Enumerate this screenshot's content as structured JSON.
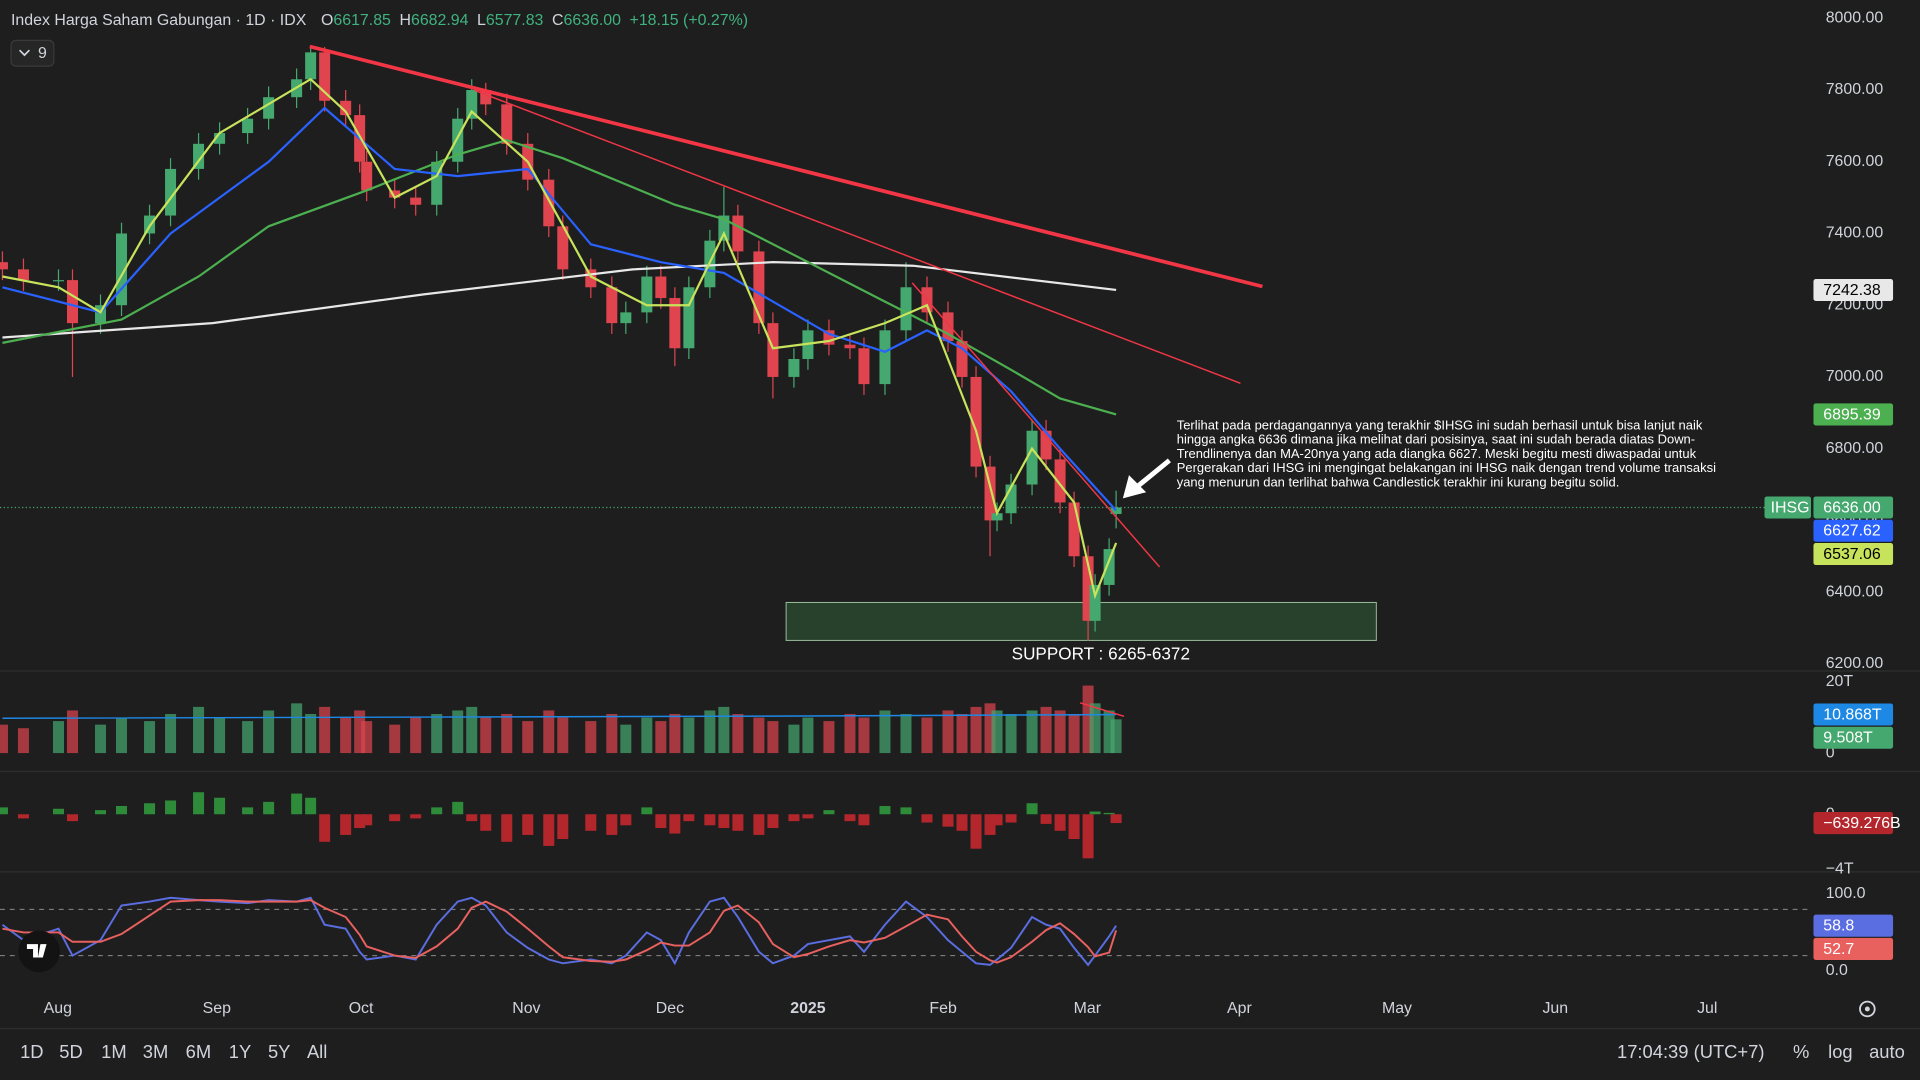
{
  "chart_data": {
    "type": "candlestick",
    "title": "Index Harga Saham Gabungan · 1D · IDX",
    "indicator_count": 9,
    "ohlc_keys": [
      "O",
      "H",
      "L",
      "C"
    ],
    "last_labels": [
      "6617.85",
      "6682.94",
      "6577.83",
      "6636.00"
    ],
    "change_label": "+18.15 (+0.27%)",
    "name": "IHSG",
    "up_color": "#45a86f",
    "down_color": "#e0444f",
    "x": [
      0,
      3,
      8,
      10,
      14,
      17,
      21,
      24,
      28,
      31,
      35,
      38,
      42,
      44,
      46,
      49,
      51,
      52,
      56,
      59,
      62,
      65,
      67,
      69,
      72,
      75,
      78,
      80,
      84,
      87,
      89,
      92,
      94,
      96,
      98,
      101,
      103,
      105,
      108,
      110,
      113,
      115,
      118,
      121,
      123,
      126,
      129,
      132,
      135,
      137,
      139,
      141,
      142,
      144,
      147,
      149,
      151,
      153,
      155,
      156,
      158,
      159
    ],
    "open": [
      7320,
      7300,
      7270,
      7270,
      7150,
      7200,
      7400,
      7450,
      7580,
      7650,
      7680,
      7720,
      7780,
      7830,
      7905,
      7770,
      7730,
      7600,
      7520,
      7500,
      7480,
      7600,
      7720,
      7800,
      7760,
      7650,
      7550,
      7420,
      7300,
      7250,
      7150,
      7180,
      7280,
      7220,
      7080,
      7250,
      7380,
      7450,
      7350,
      7150,
      7000,
      7050,
      7130,
      7090,
      7080,
      6980,
      7130,
      7250,
      7180,
      7100,
      7000,
      6750,
      6600,
      6620,
      6700,
      6850,
      6770,
      6650,
      6500,
      6320,
      6420,
      6617.85
    ],
    "high": [
      7350,
      7330,
      7300,
      7300,
      7230,
      7430,
      7480,
      7610,
      7680,
      7710,
      7750,
      7810,
      7860,
      7920,
      7920,
      7800,
      7760,
      7630,
      7550,
      7530,
      7630,
      7750,
      7830,
      7820,
      7790,
      7680,
      7580,
      7450,
      7330,
      7280,
      7210,
      7310,
      7310,
      7250,
      7280,
      7410,
      7530,
      7480,
      7380,
      7180,
      7080,
      7160,
      7160,
      7120,
      7110,
      7160,
      7320,
      7280,
      7210,
      7130,
      7030,
      6780,
      6650,
      6730,
      6880,
      6880,
      6800,
      6680,
      6530,
      6450,
      6550,
      6682.94
    ],
    "low": [
      7270,
      7240,
      7240,
      7000,
      7120,
      7170,
      7370,
      7420,
      7550,
      7620,
      7650,
      7690,
      7750,
      7800,
      7740,
      7700,
      7570,
      7490,
      7470,
      7450,
      7450,
      7570,
      7690,
      7730,
      7620,
      7520,
      7390,
      7270,
      7220,
      7120,
      7120,
      7150,
      7190,
      7030,
      7050,
      7220,
      7350,
      7320,
      7120,
      6940,
      6970,
      7020,
      7060,
      7050,
      6950,
      6950,
      7100,
      7150,
      7070,
      6970,
      6720,
      6500,
      6570,
      6590,
      6670,
      6740,
      6620,
      6470,
      6265,
      6290,
      6390,
      6577.83
    ],
    "close": [
      7300,
      7270,
      7270,
      7150,
      7200,
      7400,
      7450,
      7580,
      7650,
      7680,
      7720,
      7780,
      7830,
      7905,
      7770,
      7730,
      7600,
      7520,
      7500,
      7480,
      7600,
      7720,
      7800,
      7760,
      7650,
      7550,
      7420,
      7300,
      7250,
      7150,
      7180,
      7280,
      7220,
      7080,
      7250,
      7380,
      7450,
      7350,
      7150,
      7000,
      7050,
      7130,
      7090,
      7080,
      6980,
      7130,
      7250,
      7180,
      7100,
      7000,
      6750,
      6600,
      6620,
      6700,
      6850,
      6770,
      6650,
      6500,
      6320,
      6420,
      6520,
      6636
    ],
    "xlim": [
      -0.35,
      258.04
    ],
    "xticks": [
      {
        "value": 7.9,
        "label": "Aug"
      },
      {
        "value": 30.6,
        "label": "Sep"
      },
      {
        "value": 51.2,
        "label": "Oct"
      },
      {
        "value": 74.8,
        "label": "Nov"
      },
      {
        "value": 95.3,
        "label": "Dec"
      },
      {
        "value": 115.0,
        "label": "2025"
      },
      {
        "value": 134.3,
        "label": "Feb"
      },
      {
        "value": 154.9,
        "label": "Mar"
      },
      {
        "value": 176.6,
        "label": "Apr"
      },
      {
        "value": 199.1,
        "label": "May"
      },
      {
        "value": 221.7,
        "label": "Jun"
      },
      {
        "value": 243.4,
        "label": "Jul"
      }
    ],
    "ylim": [
      6180,
      8051
    ],
    "yticks": [
      {
        "value": 6200,
        "label": "6200.00"
      },
      {
        "value": 6400,
        "label": "6400.00"
      },
      {
        "value": 6600,
        "label": "6600.00"
      },
      {
        "value": 6800,
        "label": "6800.00"
      },
      {
        "value": 7000,
        "label": "7000.00"
      },
      {
        "value": 7200,
        "label": "7200.00"
      },
      {
        "value": 7400,
        "label": "7400.00"
      },
      {
        "value": 7600,
        "label": "7600.00"
      },
      {
        "value": 7800,
        "label": "7800.00"
      },
      {
        "value": 8000,
        "label": "8000.00"
      }
    ],
    "moving_averages": [
      {
        "color": "#e8e8e8",
        "x": [
          0,
          30,
          60,
          90,
          110,
          130,
          159
        ],
        "values": [
          7110,
          7150,
          7230,
          7300,
          7320,
          7310,
          7242.38
        ]
      },
      {
        "color": "#4caf50",
        "x": [
          0,
          17,
          28,
          38,
          52,
          65,
          72,
          80,
          96,
          103,
          113,
          126,
          135,
          144,
          151,
          159
        ],
        "values": [
          7095,
          7160,
          7280,
          7420,
          7520,
          7620,
          7660,
          7610,
          7480,
          7440,
          7340,
          7210,
          7120,
          7020,
          6940,
          6895.39
        ]
      },
      {
        "color": "#2962ff",
        "x": [
          0,
          14,
          24,
          38,
          46,
          56,
          65,
          75,
          84,
          94,
          103,
          110,
          118,
          126,
          132,
          137,
          144,
          151,
          159
        ],
        "values": [
          7250,
          7180,
          7400,
          7600,
          7750,
          7580,
          7560,
          7580,
          7370,
          7320,
          7290,
          7210,
          7120,
          7070,
          7130,
          7080,
          6960,
          6800,
          6627.62
        ]
      },
      {
        "color": "#c7e35b",
        "x": [
          0,
          8,
          14,
          21,
          31,
          44,
          49,
          56,
          62,
          67,
          75,
          84,
          92,
          98,
          103,
          110,
          118,
          126,
          132,
          139,
          142,
          147,
          153,
          156,
          159
        ],
        "values": [
          7280,
          7250,
          7180,
          7420,
          7680,
          7830,
          7740,
          7500,
          7560,
          7740,
          7600,
          7280,
          7200,
          7200,
          7400,
          7080,
          7100,
          7150,
          7200,
          6850,
          6620,
          6800,
          6650,
          6390,
          6537.06
        ]
      }
    ],
    "annotation": [
      "Terlihat pada perdagangannya yang terakhir $IHSG ini sudah berhasil untuk bisa lanjut naik",
      "hingga angka 6636 dimana jika melihat dari posisinya, saat ini sudah berada diatas Down-",
      "Trendlinenya dan MA-20nya yang ada diangka 6627. Meski begitu mesti diwaspadai untuk",
      "Pergerakan dari IHSG ini mengingat belakangan ini IHSG naik dengan trend volume transaksi",
      "yang menurun dan terlihat bahwa Candlestick terakhir ini kurang begitu solid."
    ],
    "support_label": "SUPPORT : 6265-6372",
    "volume": {
      "values": [
        8,
        7,
        9,
        12,
        8,
        10,
        9,
        11,
        13,
        10,
        9,
        12,
        14,
        11,
        13,
        10,
        12,
        9,
        8,
        10,
        11,
        12,
        13,
        10,
        11,
        9,
        12,
        10,
        9,
        11,
        8,
        10,
        9,
        11,
        10,
        12,
        13,
        11,
        10,
        9,
        8,
        10,
        9,
        11,
        10,
        12,
        11,
        10,
        12,
        11,
        13,
        14,
        12,
        11,
        12,
        13,
        12,
        11,
        19,
        14,
        12,
        9.508
      ],
      "value_labels": [
        null,
        null,
        null,
        null,
        null,
        null,
        null,
        null,
        null,
        null,
        null,
        null,
        null,
        null,
        null,
        null,
        null,
        null,
        null,
        null,
        null,
        null,
        null,
        null,
        null,
        null,
        null,
        null,
        null,
        null,
        null,
        null,
        null,
        null,
        null,
        null,
        null,
        null,
        null,
        null,
        null,
        null,
        null,
        null,
        null,
        null,
        null,
        null,
        null,
        null,
        null,
        null,
        null,
        null,
        null,
        null,
        null,
        null,
        null,
        null,
        null,
        "9.508T"
      ],
      "ylim": [
        -5.17,
        23.1
      ],
      "yticks": [
        {
          "value": 20,
          "label": "20T"
        },
        0
      ],
      "ma": {
        "color": "#1e88e5",
        "x": [
          0,
          110,
          155,
          159
        ],
        "values": [
          9.8,
          10.4,
          10.8,
          10.868
        ],
        "value_labels": [
          null,
          null,
          null,
          "10.868T"
        ]
      }
    },
    "flow": {
      "values": [
        0.5,
        -0.3,
        0.4,
        -0.5,
        0.3,
        0.6,
        0.8,
        1.0,
        1.6,
        1.2,
        0.5,
        0.9,
        1.5,
        1.2,
        -2.0,
        -1.5,
        -1.0,
        -0.8,
        -0.5,
        -0.3,
        0.5,
        0.9,
        -0.5,
        -1.2,
        -2.0,
        -1.5,
        -2.3,
        -1.8,
        -1.2,
        -1.5,
        -0.8,
        0.5,
        -1.0,
        -1.4,
        -0.5,
        -0.8,
        -1.0,
        -1.2,
        -1.5,
        -1.0,
        -0.5,
        -0.3,
        0.3,
        -0.5,
        -0.8,
        0.6,
        0.5,
        -0.6,
        -0.9,
        -1.2,
        -2.5,
        -1.5,
        -0.8,
        -0.6,
        0.8,
        -0.7,
        -1.2,
        -1.8,
        -3.2,
        0.2,
        0.1,
        -0.639276
      ],
      "value_labels": [
        null,
        null,
        null,
        null,
        null,
        null,
        null,
        null,
        null,
        null,
        null,
        null,
        null,
        null,
        null,
        null,
        null,
        null,
        null,
        null,
        null,
        null,
        null,
        null,
        null,
        null,
        null,
        null,
        null,
        null,
        null,
        null,
        null,
        null,
        null,
        null,
        null,
        null,
        null,
        null,
        null,
        null,
        null,
        null,
        null,
        null,
        null,
        null,
        null,
        null,
        null,
        null,
        null,
        null,
        null,
        null,
        null,
        null,
        null,
        null,
        null,
        "−639.276B"
      ],
      "ylim": [
        -4.18,
        3.11
      ],
      "yticks": [
        0,
        {
          "value": -4,
          "label": "−4T"
        }
      ],
      "up_color": "#2e8b3a",
      "down_color": "#b3262c"
    },
    "stoch": {
      "ylim": [
        -23.8,
        128.6
      ],
      "yticks": [
        {
          "value": 100,
          "label": "100.0"
        },
        {
          "value": 0,
          "label": "0.0"
        }
      ],
      "bands": [
        20,
        80
      ],
      "k": {
        "color": "#5b6ee1",
        "values": [
          60,
          40,
          55,
          20,
          40,
          85,
          90,
          95,
          92,
          90,
          88,
          92,
          90,
          95,
          60,
          55,
          25,
          15,
          20,
          15,
          60,
          90,
          95,
          85,
          50,
          30,
          15,
          10,
          15,
          10,
          20,
          50,
          40,
          10,
          50,
          90,
          95,
          70,
          25,
          10,
          20,
          35,
          40,
          45,
          25,
          60,
          90,
          70,
          40,
          25,
          10,
          8,
          15,
          30,
          70,
          60,
          55,
          30,
          8,
          20,
          45,
          58.8
        ]
      },
      "d": {
        "color": "#e8615f",
        "values": [
          55,
          50,
          50,
          38,
          38,
          48,
          72,
          90,
          92,
          92,
          90,
          90,
          90,
          92,
          82,
          70,
          47,
          32,
          20,
          17,
          32,
          55,
          82,
          90,
          77,
          55,
          32,
          18,
          13,
          12,
          15,
          27,
          37,
          33,
          33,
          50,
          78,
          85,
          63,
          35,
          18,
          22,
          32,
          40,
          37,
          43,
          58,
          73,
          67,
          45,
          25,
          14,
          11,
          18,
          38,
          53,
          62,
          48,
          31,
          19,
          24,
          52.7
        ]
      }
    }
  },
  "toolbar": {
    "ranges": [
      "1D",
      "5D",
      "1M",
      "3M",
      "6M",
      "1Y",
      "5Y",
      "All"
    ],
    "clock": "17:04:39 (UTC+7)",
    "options": [
      "%",
      "log",
      "auto"
    ]
  }
}
